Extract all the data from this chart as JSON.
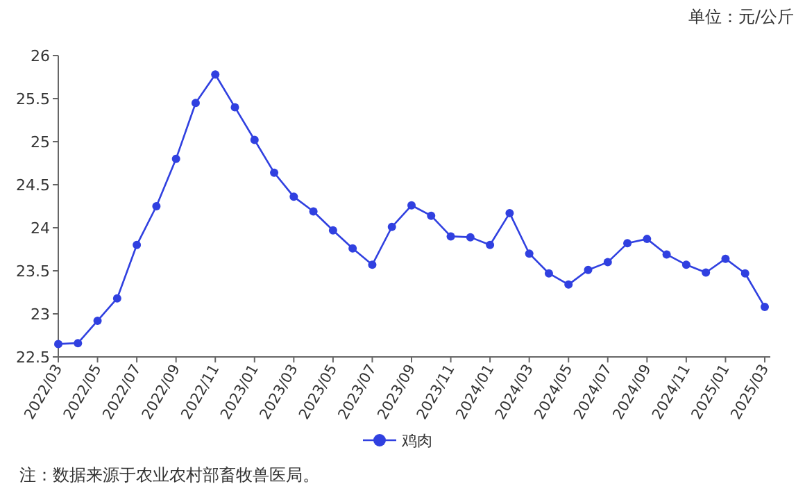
{
  "chart_data": {
    "type": "line",
    "annotations": [
      "单位：元/公斤",
      "注：数据来源于农业农村部畜牧兽医局。"
    ],
    "categories": [
      "2022/03",
      null,
      "2022/05",
      null,
      "2022/07",
      null,
      "2022/09",
      null,
      "2022/11",
      null,
      "2023/01",
      null,
      "2023/03",
      null,
      "2023/05",
      null,
      "2023/07",
      null,
      "2023/09",
      null,
      "2023/11",
      null,
      "2024/01",
      null,
      "2024/03",
      null,
      "2024/05",
      null,
      "2024/07",
      null,
      "2024/09",
      null,
      "2024/11",
      null,
      "2025/01",
      null,
      "2025/03"
    ],
    "series": [
      {
        "name": "鸡肉",
        "color": "#3040e0",
        "values": [
          22.65,
          22.66,
          22.92,
          23.18,
          23.8,
          24.25,
          24.8,
          25.45,
          25.78,
          25.4,
          25.02,
          24.64,
          24.36,
          24.19,
          23.97,
          23.76,
          23.57,
          24.01,
          24.26,
          24.14,
          23.9,
          23.89,
          23.8,
          24.17,
          23.7,
          23.47,
          23.34,
          23.51,
          23.6,
          23.82,
          23.87,
          23.69,
          23.57,
          23.48,
          23.64,
          23.47,
          23.08
        ]
      }
    ],
    "ylim": [
      22.5,
      26
    ],
    "yticks": [
      22.5,
      23,
      23.5,
      24,
      24.5,
      25,
      25.5,
      26
    ],
    "legend": "bottom",
    "marker": "circle",
    "line_style": "solid"
  }
}
